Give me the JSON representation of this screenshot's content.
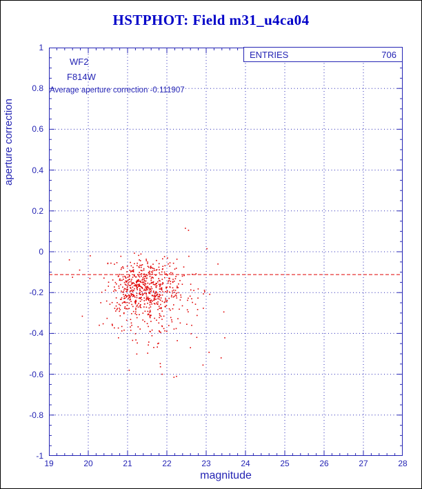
{
  "page": {
    "title": "HSTPHOT: Field m31_u4ca04"
  },
  "chart_data": {
    "type": "scatter",
    "title": "HSTPHOT: Field m31_u4ca04",
    "xlabel": "magnitude",
    "ylabel": "aperture correction",
    "xlim": [
      19,
      28
    ],
    "ylim": [
      -1,
      1
    ],
    "xticks": [
      19,
      20,
      21,
      22,
      23,
      24,
      25,
      26,
      27,
      28
    ],
    "yticks": [
      -1,
      -0.8,
      -0.6,
      -0.4,
      -0.2,
      0,
      0.2,
      0.4,
      0.6,
      0.8,
      1
    ],
    "x_minor_step": 0.2,
    "y_minor_step": 0.05,
    "grid": true,
    "grid_style": "dotted",
    "legend_position": "none",
    "stats": {
      "label": "ENTRIES",
      "value": "706"
    },
    "annotations": {
      "camera": "WF2",
      "filter": "F814W",
      "average_line": {
        "label": "Average aperture correction -0.111907",
        "y": -0.111907
      }
    },
    "n_points": 706,
    "colors": {
      "accent": "#2323b4",
      "title": "#0000c8",
      "points": "#e00000",
      "average_line": "#e00000"
    },
    "outlier_points": [
      [
        19.52,
        -0.04
      ],
      [
        19.6,
        -0.125
      ],
      [
        19.78,
        -0.09
      ],
      [
        20.05,
        -0.02
      ],
      [
        22.47,
        0.115
      ],
      [
        22.55,
        0.105
      ],
      [
        23.02,
        0.015
      ],
      [
        23.3,
        -0.06
      ],
      [
        23.45,
        -0.295
      ],
      [
        23.38,
        -0.52
      ],
      [
        22.92,
        -0.555
      ],
      [
        22.18,
        -0.615
      ],
      [
        21.88,
        -0.6
      ],
      [
        22.6,
        -0.47
      ],
      [
        20.28,
        -0.36
      ]
    ],
    "points_model": {
      "seed": 42,
      "clip": {
        "x": [
          19.45,
          23.55
        ],
        "y": [
          -0.655,
          0.12
        ]
      },
      "components": [
        {
          "count": 500,
          "mean": [
            21.42,
            -0.172
          ],
          "sigma": [
            0.42,
            0.068
          ]
        },
        {
          "count": 150,
          "mean": [
            21.6,
            -0.26
          ],
          "sigma": [
            0.6,
            0.11
          ]
        },
        {
          "count": 41,
          "mean": [
            21.8,
            -0.36
          ],
          "sigma": [
            0.8,
            0.14
          ]
        }
      ]
    }
  }
}
